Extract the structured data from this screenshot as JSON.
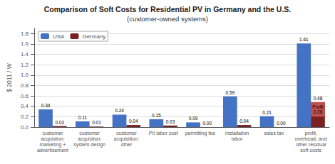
{
  "chart_data": {
    "type": "bar",
    "title": "Comparison of Soft Costs for Residential PV in Germany and the U.S.",
    "subtitle": "(customer-owned systems)",
    "ylabel": "$ 2011 / W",
    "categories": [
      "customer\nacquistion:\nmarketing +\nadvertisement",
      "customer\nacquistion:\nsystem design",
      "customer\nacquisition:\nother",
      "PII labor cost",
      "permitting fee",
      "installation\nlabor",
      "sales tax",
      "profit,\noverhead, and\nother residual\nsoft costs"
    ],
    "series": [
      {
        "name": "USA",
        "color": "#4472C4",
        "values": [
          0.34,
          0.11,
          0.24,
          0.15,
          0.09,
          0.59,
          0.21,
          1.61
        ],
        "value_labels": [
          "0.34",
          "0.11",
          "0.24",
          "0.15",
          "0.09",
          "0.59",
          "0.21",
          "1.61"
        ]
      },
      {
        "name": "Germany",
        "color": "#7B2020",
        "values": [
          0.02,
          0.01,
          0.04,
          0.03,
          0.0,
          0.04,
          0.0,
          0.48
        ],
        "value_labels": [
          "0.02",
          "0.01",
          "0.04",
          "0.03",
          "0.00",
          "0.04",
          "0.00",
          "0.48"
        ]
      }
    ],
    "annotations": [
      {
        "text": "Profit\n0.28",
        "category": "profit,\noverhead, and\nother residual\nsoft costs",
        "series": "Germany",
        "value": 0.28,
        "bottom": 0.2,
        "color": "#C0504D"
      }
    ],
    "ylim": [
      0,
      1.9
    ],
    "yticks": [
      {
        "value": 0,
        "label": "0.0"
      },
      0.2,
      0.4,
      0.6,
      0.8,
      {
        "value": 1,
        "label": "1.0"
      },
      1.2,
      1.4,
      1.6,
      1.8
    ],
    "grid": true,
    "legend": "upper left",
    "data_labels": true
  }
}
